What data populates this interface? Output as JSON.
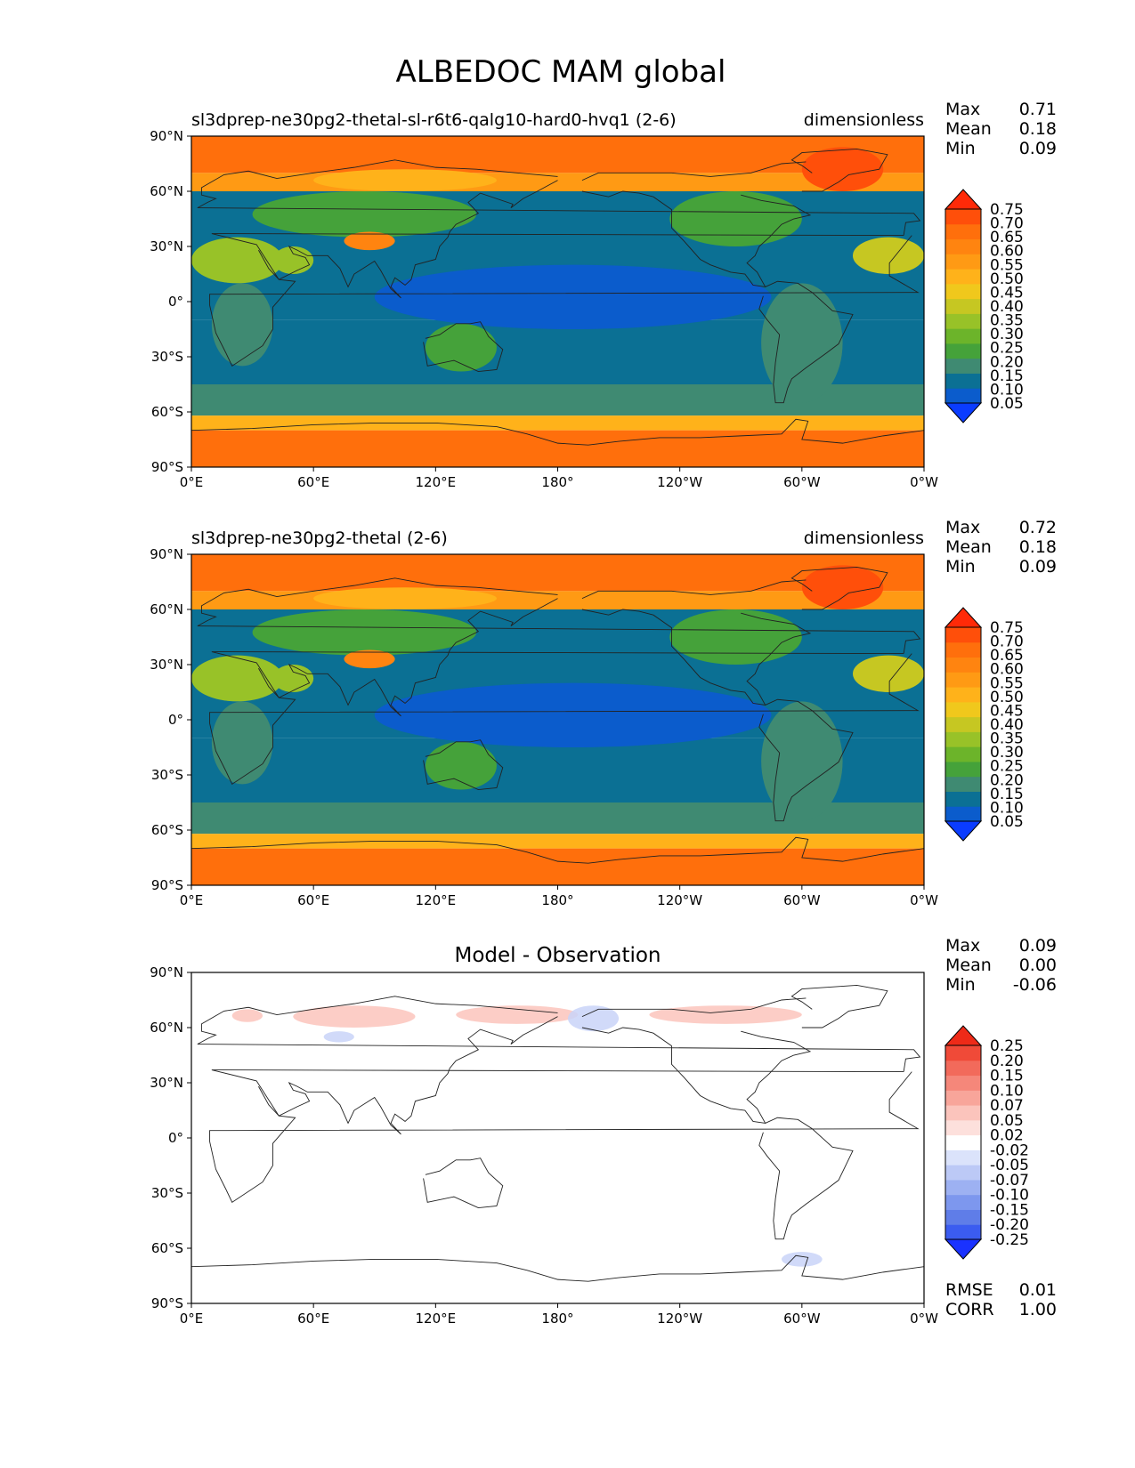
{
  "figure_title": "ALBEDOC MAM global",
  "colors": {
    "cb_main": [
      "#0a3cff",
      "#0b5ccc",
      "#0b7094",
      "#3f8a72",
      "#45a23a",
      "#6cb42a",
      "#98c228",
      "#c6c722",
      "#f0c81c",
      "#ffb21a",
      "#ff9a14",
      "#ff8410",
      "#ff6f0c",
      "#ff4f0a",
      "#ff2a08"
    ],
    "cb_diff": [
      "#1a32ff",
      "#3b5cf0",
      "#5f7de8",
      "#7d97ee",
      "#9db1f2",
      "#bcc9f6",
      "#dbe3fb",
      "#ffffff",
      "#fde0dc",
      "#fbc4bc",
      "#f8a59a",
      "#f5877a",
      "#f26a5b",
      "#f04a38",
      "#ee2a18"
    ],
    "land_outline": "#222222",
    "zero": "#ffffff"
  },
  "chart_data": [
    {
      "type": "heatmap",
      "title": "sl3dprep-ne30pg2-thetal-sl-r6t6-qalg10-hard0-hvq1 (2-6)",
      "units": "dimensionless",
      "stats": [
        {
          "label": "Max",
          "value": "0.71"
        },
        {
          "label": "Mean",
          "value": "0.18"
        },
        {
          "label": "Min",
          "value": "0.09"
        }
      ],
      "colorbar_levels": [
        "0.75",
        "0.70",
        "0.65",
        "0.60",
        "0.55",
        "0.50",
        "0.45",
        "0.40",
        "0.35",
        "0.30",
        "0.25",
        "0.20",
        "0.15",
        "0.10",
        "0.05"
      ],
      "x_ticks": [
        "0°E",
        "60°E",
        "120°E",
        "180°",
        "120°W",
        "60°W",
        "0°W"
      ],
      "y_ticks": [
        "90°N",
        "60°N",
        "30°N",
        "0°",
        "30°S",
        "60°S",
        "90°S"
      ],
      "xlim": [
        0,
        360
      ],
      "ylim": [
        -90,
        90
      ],
      "bands": [
        {
          "lat": [
            70,
            90
          ],
          "value": 0.62
        },
        {
          "lat": [
            60,
            70
          ],
          "value": 0.5
        },
        {
          "lat": [
            -10,
            60
          ],
          "value": 0.13
        },
        {
          "lat": [
            -45,
            -10
          ],
          "value": 0.13
        },
        {
          "lat": [
            -62,
            -45
          ],
          "value": 0.17
        },
        {
          "lat": [
            -70,
            -62
          ],
          "value": 0.45
        },
        {
          "lat": [
            -90,
            -70
          ],
          "value": 0.62
        }
      ],
      "features": [
        {
          "name": "Tropical Pacific",
          "lon": [
            90,
            285
          ],
          "lat": [
            -15,
            20
          ],
          "value": 0.08
        },
        {
          "name": "Sahara",
          "lon": [
            0,
            45
          ],
          "lat": [
            10,
            35
          ],
          "value": 0.32
        },
        {
          "name": "Arabia",
          "lon": [
            40,
            60
          ],
          "lat": [
            15,
            30
          ],
          "value": 0.32
        },
        {
          "name": "Eurasia",
          "lon": [
            30,
            140
          ],
          "lat": [
            35,
            60
          ],
          "value": 0.23
        },
        {
          "name": "Tibet",
          "lon": [
            75,
            100
          ],
          "lat": [
            28,
            38
          ],
          "value": 0.55
        },
        {
          "name": "Siberia",
          "lon": [
            60,
            150
          ],
          "lat": [
            60,
            72
          ],
          "value": 0.45
        },
        {
          "name": "North America",
          "lon": [
            235,
            300
          ],
          "lat": [
            30,
            60
          ],
          "value": 0.22
        },
        {
          "name": "Greenland",
          "lon": [
            300,
            340
          ],
          "lat": [
            60,
            84
          ],
          "value": 0.67
        },
        {
          "name": "Africa",
          "lon": [
            10,
            40
          ],
          "lat": [
            -35,
            10
          ],
          "value": 0.18
        },
        {
          "name": "Australia",
          "lon": [
            115,
            150
          ],
          "lat": [
            -38,
            -12
          ],
          "value": 0.2
        },
        {
          "name": "South America",
          "lon": [
            280,
            320
          ],
          "lat": [
            -55,
            10
          ],
          "value": 0.18
        },
        {
          "name": "Atlantic Subtropics",
          "lon": [
            325,
            360
          ],
          "lat": [
            15,
            35
          ],
          "value": 0.38
        }
      ]
    },
    {
      "type": "heatmap",
      "title": "sl3dprep-ne30pg2-thetal (2-6)",
      "units": "dimensionless",
      "stats": [
        {
          "label": "Max",
          "value": "0.72"
        },
        {
          "label": "Mean",
          "value": "0.18"
        },
        {
          "label": "Min",
          "value": "0.09"
        }
      ],
      "colorbar_levels": [
        "0.75",
        "0.70",
        "0.65",
        "0.60",
        "0.55",
        "0.50",
        "0.45",
        "0.40",
        "0.35",
        "0.30",
        "0.25",
        "0.20",
        "0.15",
        "0.10",
        "0.05"
      ],
      "x_ticks": [
        "0°E",
        "60°E",
        "120°E",
        "180°",
        "120°W",
        "60°W",
        "0°W"
      ],
      "y_ticks": [
        "90°N",
        "60°N",
        "30°N",
        "0°",
        "30°S",
        "60°S",
        "90°S"
      ],
      "xlim": [
        0,
        360
      ],
      "ylim": [
        -90,
        90
      ],
      "bands": [
        {
          "lat": [
            70,
            90
          ],
          "value": 0.62
        },
        {
          "lat": [
            60,
            70
          ],
          "value": 0.5
        },
        {
          "lat": [
            -10,
            60
          ],
          "value": 0.13
        },
        {
          "lat": [
            -45,
            -10
          ],
          "value": 0.13
        },
        {
          "lat": [
            -62,
            -45
          ],
          "value": 0.17
        },
        {
          "lat": [
            -70,
            -62
          ],
          "value": 0.45
        },
        {
          "lat": [
            -90,
            -70
          ],
          "value": 0.62
        }
      ],
      "features": [
        {
          "name": "Tropical Pacific",
          "lon": [
            90,
            285
          ],
          "lat": [
            -15,
            20
          ],
          "value": 0.08
        },
        {
          "name": "Sahara",
          "lon": [
            0,
            45
          ],
          "lat": [
            10,
            35
          ],
          "value": 0.32
        },
        {
          "name": "Arabia",
          "lon": [
            40,
            60
          ],
          "lat": [
            15,
            30
          ],
          "value": 0.32
        },
        {
          "name": "Eurasia",
          "lon": [
            30,
            140
          ],
          "lat": [
            35,
            60
          ],
          "value": 0.23
        },
        {
          "name": "Tibet",
          "lon": [
            75,
            100
          ],
          "lat": [
            28,
            38
          ],
          "value": 0.55
        },
        {
          "name": "Siberia",
          "lon": [
            60,
            150
          ],
          "lat": [
            60,
            72
          ],
          "value": 0.45
        },
        {
          "name": "North America",
          "lon": [
            235,
            300
          ],
          "lat": [
            30,
            60
          ],
          "value": 0.22
        },
        {
          "name": "Greenland",
          "lon": [
            300,
            340
          ],
          "lat": [
            60,
            84
          ],
          "value": 0.67
        },
        {
          "name": "Africa",
          "lon": [
            10,
            40
          ],
          "lat": [
            -35,
            10
          ],
          "value": 0.18
        },
        {
          "name": "Australia",
          "lon": [
            115,
            150
          ],
          "lat": [
            -38,
            -12
          ],
          "value": 0.2
        },
        {
          "name": "South America",
          "lon": [
            280,
            320
          ],
          "lat": [
            -55,
            10
          ],
          "value": 0.18
        },
        {
          "name": "Atlantic Subtropics",
          "lon": [
            325,
            360
          ],
          "lat": [
            15,
            35
          ],
          "value": 0.38
        }
      ]
    },
    {
      "type": "heatmap",
      "title": "Model - Observation",
      "units": "",
      "stats": [
        {
          "label": "Max",
          "value": "0.09"
        },
        {
          "label": "Mean",
          "value": "0.00"
        },
        {
          "label": "Min",
          "value": "-0.06"
        }
      ],
      "extra_stats": [
        {
          "label": "RMSE",
          "value": "0.01"
        },
        {
          "label": "CORR",
          "value": "1.00"
        }
      ],
      "colorbar_levels": [
        "0.25",
        "0.20",
        "0.15",
        "0.10",
        "0.07",
        "0.05",
        "0.02",
        "-0.02",
        "-0.05",
        "-0.07",
        "-0.10",
        "-0.15",
        "-0.20",
        "-0.25"
      ],
      "x_ticks": [
        "0°E",
        "60°E",
        "120°E",
        "180°",
        "120°W",
        "60°W",
        "0°W"
      ],
      "y_ticks": [
        "90°N",
        "60°N",
        "30°N",
        "0°",
        "30°S",
        "60°S",
        "90°S"
      ],
      "xlim": [
        0,
        360
      ],
      "ylim": [
        -90,
        90
      ],
      "anomalies": [
        {
          "lon": [
            50,
            110
          ],
          "lat": [
            60,
            72
          ],
          "value": 0.05
        },
        {
          "lon": [
            130,
            190
          ],
          "lat": [
            62,
            72
          ],
          "value": 0.03
        },
        {
          "lon": [
            185,
            210
          ],
          "lat": [
            58,
            72
          ],
          "value": -0.03
        },
        {
          "lon": [
            225,
            300
          ],
          "lat": [
            62,
            72
          ],
          "value": 0.03
        },
        {
          "lon": [
            65,
            80
          ],
          "lat": [
            52,
            58
          ],
          "value": -0.03
        },
        {
          "lon": [
            290,
            310
          ],
          "lat": [
            -70,
            -62
          ],
          "value": -0.03
        },
        {
          "lon": [
            20,
            35
          ],
          "lat": [
            63,
            70
          ],
          "value": 0.03
        }
      ]
    }
  ]
}
